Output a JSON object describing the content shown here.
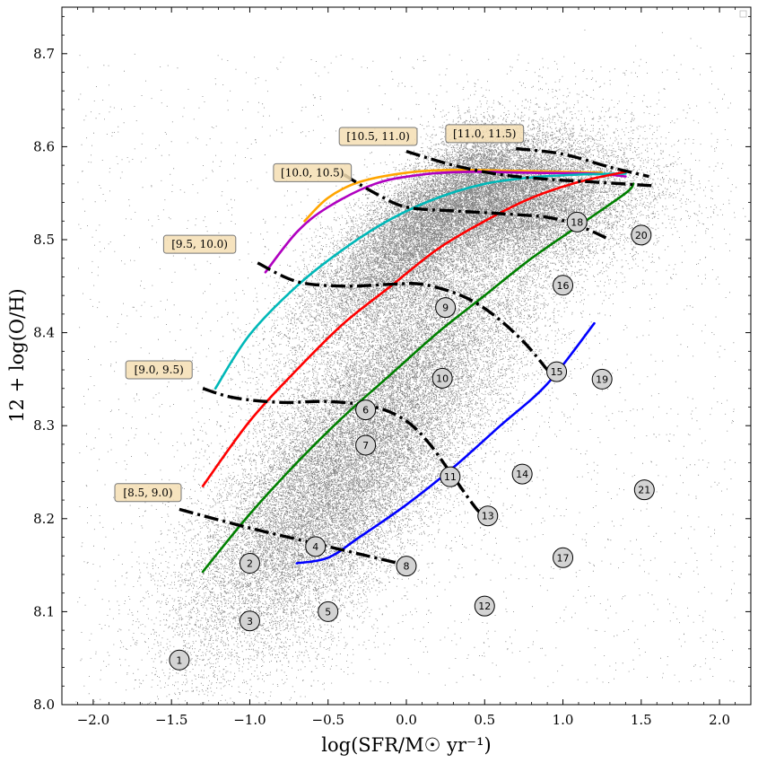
{
  "chart_data": {
    "type": "scatter",
    "xlabel": "log(SFR/M☉ yr⁻¹)",
    "ylabel": "12 + log(O/H)",
    "xlim": [
      -2.2,
      2.2
    ],
    "ylim": [
      8.0,
      8.75
    ],
    "xticks": [
      -2.0,
      -1.5,
      -1.0,
      -0.5,
      0.0,
      0.5,
      1.0,
      1.5,
      2.0
    ],
    "xtick_labels": [
      "−2.0",
      "−1.5",
      "−1.0",
      "−0.5",
      "0.0",
      "0.5",
      "1.0",
      "1.5",
      "2.0"
    ],
    "yticks": [
      8.0,
      8.1,
      8.2,
      8.3,
      8.4,
      8.5,
      8.6,
      8.7
    ],
    "ytick_labels": [
      "8.0",
      "8.1",
      "8.2",
      "8.3",
      "8.4",
      "8.5",
      "8.6",
      "8.7"
    ],
    "grid": false,
    "legend": "top-right (empty)",
    "background_scatter": {
      "color": "#808080",
      "description": "dense gray point cloud, densest near x 0.5, y 8.55"
    },
    "mass_bin_curves": [
      {
        "label": "[8.5, 9.0)",
        "style": "dash-dot",
        "color": "#000000",
        "points": [
          [
            -1.45,
            8.21
          ],
          [
            -1.0,
            8.19
          ],
          [
            -0.5,
            8.17
          ],
          [
            0.0,
            8.15
          ]
        ]
      },
      {
        "label": "[9.0, 9.5)",
        "style": "dash-dot",
        "color": "#000000",
        "points": [
          [
            -1.3,
            8.34
          ],
          [
            -1.1,
            8.33
          ],
          [
            -0.8,
            8.325
          ],
          [
            -0.5,
            8.326
          ],
          [
            -0.2,
            8.32
          ],
          [
            0.0,
            8.305
          ],
          [
            0.15,
            8.28
          ],
          [
            0.3,
            8.245
          ],
          [
            0.45,
            8.21
          ],
          [
            0.5,
            8.205
          ]
        ]
      },
      {
        "label": "[9.5, 10.0)",
        "style": "dash-dot",
        "color": "#000000",
        "points": [
          [
            -0.95,
            8.475
          ],
          [
            -0.7,
            8.455
          ],
          [
            -0.4,
            8.45
          ],
          [
            -0.1,
            8.452
          ],
          [
            0.1,
            8.452
          ],
          [
            0.35,
            8.44
          ],
          [
            0.55,
            8.42
          ],
          [
            0.75,
            8.39
          ],
          [
            0.9,
            8.36
          ]
        ]
      },
      {
        "label": "[10.0, 10.5)",
        "style": "dash-dot",
        "color": "#000000",
        "points": [
          [
            -0.4,
            8.57
          ],
          [
            -0.2,
            8.55
          ],
          [
            0.0,
            8.535
          ],
          [
            0.3,
            8.531
          ],
          [
            0.6,
            8.528
          ],
          [
            0.9,
            8.524
          ],
          [
            1.1,
            8.515
          ],
          [
            1.3,
            8.5
          ]
        ]
      },
      {
        "label": "[10.5, 11.0)",
        "style": "dash-dot",
        "color": "#000000",
        "points": [
          [
            0.0,
            8.595
          ],
          [
            0.3,
            8.58
          ],
          [
            0.6,
            8.57
          ],
          [
            0.9,
            8.565
          ],
          [
            1.2,
            8.562
          ],
          [
            1.57,
            8.558
          ]
        ]
      },
      {
        "label": "[11.0, 11.5)",
        "style": "dash-dot",
        "color": "#000000",
        "points": [
          [
            0.7,
            8.598
          ],
          [
            1.0,
            8.592
          ],
          [
            1.3,
            8.578
          ],
          [
            1.55,
            8.568
          ]
        ]
      }
    ],
    "colored_curves": [
      {
        "color": "#ffa500",
        "points": [
          [
            -0.65,
            8.52
          ],
          [
            -0.5,
            8.545
          ],
          [
            -0.3,
            8.562
          ],
          [
            0.0,
            8.572
          ],
          [
            0.3,
            8.575
          ],
          [
            0.7,
            8.574
          ],
          [
            1.0,
            8.573
          ],
          [
            1.25,
            8.572
          ]
        ]
      },
      {
        "color": "#b000c0",
        "points": [
          [
            -0.9,
            8.465
          ],
          [
            -0.7,
            8.508
          ],
          [
            -0.5,
            8.535
          ],
          [
            -0.2,
            8.56
          ],
          [
            0.1,
            8.57
          ],
          [
            0.4,
            8.573
          ],
          [
            0.8,
            8.572
          ],
          [
            1.2,
            8.571
          ],
          [
            1.4,
            8.568
          ]
        ]
      },
      {
        "color": "#00b8b8",
        "points": [
          [
            -1.22,
            8.34
          ],
          [
            -1.0,
            8.398
          ],
          [
            -0.7,
            8.45
          ],
          [
            -0.4,
            8.49
          ],
          [
            -0.1,
            8.522
          ],
          [
            0.2,
            8.545
          ],
          [
            0.5,
            8.56
          ],
          [
            0.8,
            8.567
          ],
          [
            1.1,
            8.57
          ],
          [
            1.4,
            8.571
          ]
        ]
      },
      {
        "color": "#ff0000",
        "points": [
          [
            -1.3,
            8.235
          ],
          [
            -1.0,
            8.305
          ],
          [
            -0.7,
            8.36
          ],
          [
            -0.4,
            8.41
          ],
          [
            -0.1,
            8.45
          ],
          [
            0.2,
            8.49
          ],
          [
            0.5,
            8.52
          ],
          [
            0.8,
            8.545
          ],
          [
            1.1,
            8.562
          ],
          [
            1.4,
            8.573
          ]
        ]
      },
      {
        "color": "#008000",
        "points": [
          [
            -1.3,
            8.143
          ],
          [
            -1.0,
            8.205
          ],
          [
            -0.7,
            8.26
          ],
          [
            -0.4,
            8.31
          ],
          [
            -0.1,
            8.355
          ],
          [
            0.2,
            8.4
          ],
          [
            0.5,
            8.44
          ],
          [
            0.8,
            8.48
          ],
          [
            1.1,
            8.515
          ],
          [
            1.4,
            8.55
          ],
          [
            1.45,
            8.56
          ]
        ]
      },
      {
        "color": "#0000ff",
        "points": [
          [
            -0.7,
            8.152
          ],
          [
            -0.5,
            8.158
          ],
          [
            -0.3,
            8.18
          ],
          [
            0.0,
            8.215
          ],
          [
            0.3,
            8.255
          ],
          [
            0.6,
            8.3
          ],
          [
            0.9,
            8.345
          ],
          [
            1.2,
            8.41
          ]
        ]
      }
    ],
    "box_labels": [
      {
        "text": "[8.5, 9.0)",
        "x": -1.65,
        "y": 8.228
      },
      {
        "text": "[9.0, 9.5)",
        "x": -1.58,
        "y": 8.36
      },
      {
        "text": "[9.5, 10.0)",
        "x": -1.32,
        "y": 8.495
      },
      {
        "text": "[10.0, 10.5)",
        "x": -0.6,
        "y": 8.572
      },
      {
        "text": "[10.5, 11.0)",
        "x": -0.18,
        "y": 8.611
      },
      {
        "text": "[11.0, 11.5)",
        "x": 0.5,
        "y": 8.614
      }
    ],
    "numbered_markers": [
      {
        "label": "1",
        "x": -1.45,
        "y": 8.048
      },
      {
        "label": "2",
        "x": -1.0,
        "y": 8.152
      },
      {
        "label": "3",
        "x": -1.0,
        "y": 8.09
      },
      {
        "label": "4",
        "x": -0.58,
        "y": 8.17
      },
      {
        "label": "5",
        "x": -0.5,
        "y": 8.1
      },
      {
        "label": "6",
        "x": -0.26,
        "y": 8.317
      },
      {
        "label": "7",
        "x": -0.26,
        "y": 8.279
      },
      {
        "label": "8",
        "x": 0.0,
        "y": 8.149
      },
      {
        "label": "9",
        "x": 0.25,
        "y": 8.427
      },
      {
        "label": "10",
        "x": 0.23,
        "y": 8.351
      },
      {
        "label": "11",
        "x": 0.28,
        "y": 8.245
      },
      {
        "label": "12",
        "x": 0.5,
        "y": 8.106
      },
      {
        "label": "13",
        "x": 0.52,
        "y": 8.203
      },
      {
        "label": "14",
        "x": 0.74,
        "y": 8.248
      },
      {
        "label": "15",
        "x": 0.96,
        "y": 8.358
      },
      {
        "label": "16",
        "x": 1.0,
        "y": 8.451
      },
      {
        "label": "17",
        "x": 1.0,
        "y": 8.158
      },
      {
        "label": "18",
        "x": 1.09,
        "y": 8.519
      },
      {
        "label": "19",
        "x": 1.25,
        "y": 8.35
      },
      {
        "label": "20",
        "x": 1.5,
        "y": 8.505
      },
      {
        "label": "21",
        "x": 1.52,
        "y": 8.231
      }
    ]
  }
}
